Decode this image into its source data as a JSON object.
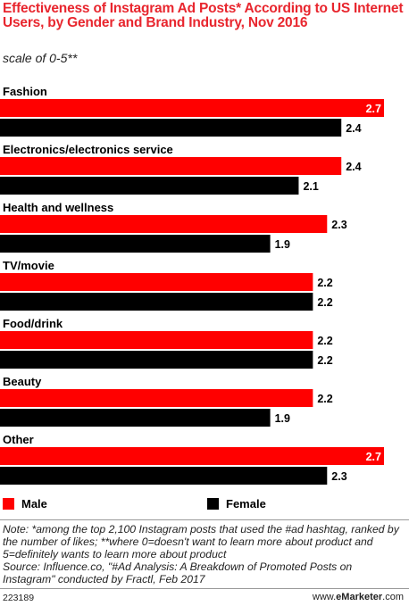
{
  "title": "Effectiveness of Instagram Ad Posts* According to US Internet Users, by Gender and Brand Industry, Nov 2016",
  "subtitle": "scale of 0-5**",
  "colors": {
    "male": "#ff0000",
    "female": "#000000",
    "title": "#e8262e"
  },
  "chart_data": {
    "type": "bar",
    "orientation": "horizontal",
    "categories": [
      "Fashion",
      "Electronics/electronics service",
      "Health and wellness",
      "TV/movie",
      "Food/drink",
      "Beauty",
      "Other"
    ],
    "series": [
      {
        "name": "Male",
        "values": [
          2.7,
          2.4,
          2.3,
          2.2,
          2.2,
          2.2,
          2.7
        ]
      },
      {
        "name": "Female",
        "values": [
          2.4,
          2.1,
          1.9,
          2.2,
          2.2,
          1.9,
          2.3
        ]
      }
    ],
    "value_labels": {
      "Male": [
        "2.7",
        "2.4",
        "2.3",
        "2.2",
        "2.2",
        "2.2",
        "2.7"
      ],
      "Female": [
        "2.4",
        "2.1",
        "1.9",
        "2.2",
        "2.2",
        "1.9",
        "2.3"
      ]
    },
    "xlim": [
      0,
      2.7
    ],
    "grid": false,
    "legend_position": "bottom-left"
  },
  "legend": {
    "male": "Male",
    "female": "Female"
  },
  "note": "Note: *among the top 2,100 Instagram posts that used the #ad hashtag, ranked by the number of likes; **where 0=doesn't want to learn more about product and 5=definitely wants to learn more about product",
  "source": "Source: Influence.co, \"#Ad Analysis: A Breakdown of Promoted Posts on Instagram\" conducted by Fractl, Feb 2017",
  "footer": {
    "id": "223189",
    "brand_prefix": "www.",
    "brand_bold": "eMarketer",
    "brand_suffix": ".com"
  }
}
